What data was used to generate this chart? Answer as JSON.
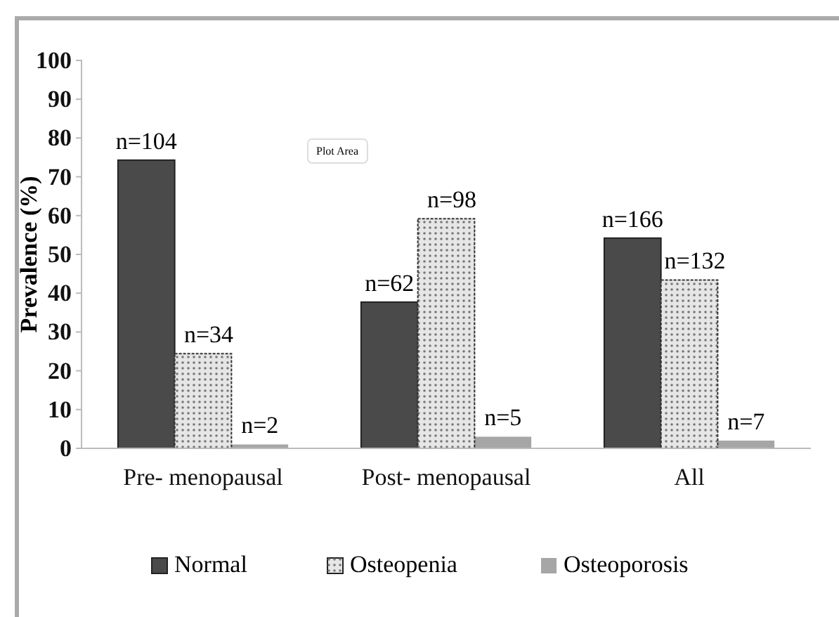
{
  "chart_data": {
    "type": "bar",
    "ylabel": "Prevalence (%)",
    "categories": [
      "Pre- menopausal",
      "Post- menopausal",
      "All"
    ],
    "series": [
      {
        "name": "Normal",
        "color": "#4a4a4a",
        "values": [
          74.3,
          37.7,
          54.2
        ]
      },
      {
        "name": "Osteopenia",
        "color": "#e6e6e6",
        "values": [
          24.4,
          59.2,
          43.4
        ]
      },
      {
        "name": "Osteoporosis",
        "color": "#a6a6a6",
        "values": [
          1,
          3,
          2
        ]
      }
    ],
    "ylim": [
      0,
      100
    ],
    "yticks": [
      0,
      10,
      20,
      30,
      40,
      50,
      60,
      70,
      80,
      90,
      100
    ],
    "grid": false,
    "legend": "bottom",
    "annotations": [
      "Plot Area",
      "n=104",
      "n=34",
      "n=2",
      "n=62",
      "n=98",
      "n=5",
      "n=166",
      "n=132",
      "n=7"
    ]
  }
}
